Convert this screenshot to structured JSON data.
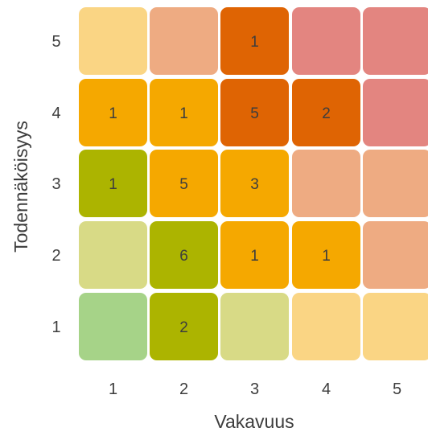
{
  "chart_data": {
    "type": "heatmap",
    "title": "",
    "xlabel": "Vakavuus",
    "ylabel": "Todennäköisyys",
    "x_ticks": [
      "1",
      "2",
      "3",
      "4",
      "5"
    ],
    "y_ticks": [
      "5",
      "4",
      "3",
      "2",
      "1"
    ],
    "cells": [
      [
        {
          "count": "",
          "color": "#fad584"
        },
        {
          "count": "",
          "color": "#eeab82"
        },
        {
          "count": "1",
          "color": "#df6403"
        },
        {
          "count": "",
          "color": "#e38580"
        },
        {
          "count": "",
          "color": "#e38580"
        }
      ],
      [
        {
          "count": "1",
          "color": "#f5a800"
        },
        {
          "count": "1",
          "color": "#f5a800"
        },
        {
          "count": "5",
          "color": "#df6403"
        },
        {
          "count": "2",
          "color": "#df6403"
        },
        {
          "count": "",
          "color": "#e38580"
        }
      ],
      [
        {
          "count": "1",
          "color": "#acb400"
        },
        {
          "count": "5",
          "color": "#f5a800"
        },
        {
          "count": "3",
          "color": "#f5a800"
        },
        {
          "count": "",
          "color": "#eeab82"
        },
        {
          "count": "",
          "color": "#eeab82"
        }
      ],
      [
        {
          "count": "",
          "color": "#d8da86"
        },
        {
          "count": "6",
          "color": "#acb400"
        },
        {
          "count": "1",
          "color": "#f5a800"
        },
        {
          "count": "1",
          "color": "#f5a800"
        },
        {
          "count": "",
          "color": "#eeab82"
        }
      ],
      [
        {
          "count": "",
          "color": "#a6d388"
        },
        {
          "count": "2",
          "color": "#acb400"
        },
        {
          "count": "",
          "color": "#d8da86"
        },
        {
          "count": "",
          "color": "#fad584"
        },
        {
          "count": "",
          "color": "#fad584"
        }
      ]
    ]
  }
}
